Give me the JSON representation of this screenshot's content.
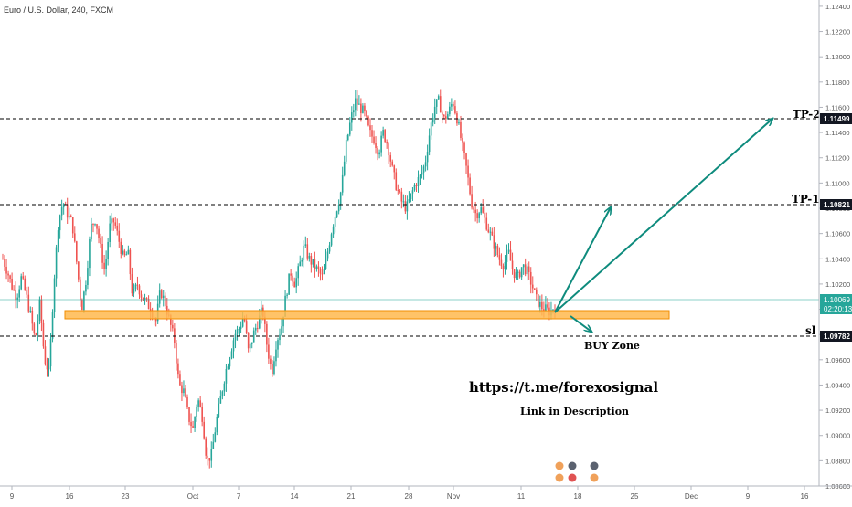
{
  "header": {
    "title": "Euro / U.S. Dollar, 240, FXCM"
  },
  "price_axis": {
    "ticks": [
      "1.12400",
      "1.12200",
      "1.12000",
      "1.11800",
      "1.11600",
      "1.11400",
      "1.11200",
      "1.11000",
      "1.10800",
      "1.10600",
      "1.10400",
      "1.10200",
      "1.10000",
      "1.09800",
      "1.09600",
      "1.09400",
      "1.09200",
      "1.09000",
      "1.08800",
      "1.08600"
    ],
    "current_price": "1.10069",
    "countdown": "02:20:13"
  },
  "time_axis": {
    "ticks": [
      "9",
      "16",
      "23",
      "Oct",
      "7",
      "14",
      "21",
      "28",
      "Nov",
      "11",
      "18",
      "25",
      "Dec",
      "9",
      "16"
    ]
  },
  "levels": {
    "tp2": {
      "label": "TP-2",
      "price": "1.11499"
    },
    "tp1": {
      "label": "TP-1",
      "price": "1.10821"
    },
    "sl": {
      "label": "sl",
      "price": "1.09782"
    }
  },
  "zone": {
    "label": "BUY Zone",
    "low": 1.0994,
    "high": 1.1
  },
  "annotations": {
    "link": "https://t.me/forexosignal",
    "description": "Link in Description"
  },
  "colors": {
    "up": "#26a69a",
    "down": "#ef5350",
    "arrow": "#0e8b7d",
    "zone_fill": "#ffb84d",
    "zone_border": "#f28c00",
    "current": "#26a69a"
  },
  "chart_data": {
    "type": "candlestick",
    "title": "Euro / U.S. Dollar, 240, FXCM",
    "ylim": [
      1.086,
      1.1245
    ],
    "x_ticks": [
      "9",
      "16",
      "23",
      "Oct",
      "7",
      "14",
      "21",
      "28",
      "Nov",
      "11",
      "18",
      "25",
      "Dec",
      "9",
      "16"
    ],
    "path": [
      1.104,
      1.103,
      1.1018,
      1.101,
      1.1025,
      1.1012,
      1.0995,
      1.0975,
      1.1005,
      1.096,
      1.095,
      1.102,
      1.107,
      1.1085,
      1.1075,
      1.1068,
      1.1035,
      1.1,
      1.1025,
      1.1065,
      1.1072,
      1.105,
      1.103,
      1.1065,
      1.107,
      1.1055,
      1.104,
      1.1045,
      1.101,
      1.102,
      1.101,
      1.1005,
      1.1,
      1.099,
      1.1015,
      1.1005,
      1.099,
      1.0975,
      1.094,
      1.0935,
      1.0915,
      1.0905,
      1.093,
      1.0915,
      1.088,
      1.0885,
      1.091,
      1.093,
      1.095,
      1.0965,
      1.098,
      1.0985,
      1.0995,
      1.0965,
      1.098,
      1.099,
      1.1,
      1.097,
      1.095,
      1.0975,
      1.0985,
      1.101,
      1.103,
      1.102,
      1.1035,
      1.105,
      1.104,
      1.1035,
      1.103,
      1.1025,
      1.1045,
      1.1065,
      1.108,
      1.1095,
      1.113,
      1.115,
      1.1165,
      1.116,
      1.1155,
      1.114,
      1.1135,
      1.1125,
      1.114,
      1.113,
      1.111,
      1.1095,
      1.1085,
      1.108,
      1.109,
      1.11,
      1.1105,
      1.1115,
      1.114,
      1.116,
      1.1165,
      1.115,
      1.1155,
      1.1165,
      1.115,
      1.113,
      1.111,
      1.1085,
      1.1075,
      1.108,
      1.107,
      1.106,
      1.105,
      1.104,
      1.1035,
      1.1045,
      1.103,
      1.1025,
      1.1035,
      1.103,
      1.102,
      1.1008,
      1.1002,
      1.1,
      1.0998,
      1.1003
    ],
    "levels": [
      {
        "name": "TP-2",
        "value": 1.11499
      },
      {
        "name": "TP-1",
        "value": 1.10821
      },
      {
        "name": "sl",
        "value": 1.09782
      }
    ],
    "current_price": 1.10069,
    "buy_zone": [
      1.0994,
      1.1
    ]
  }
}
